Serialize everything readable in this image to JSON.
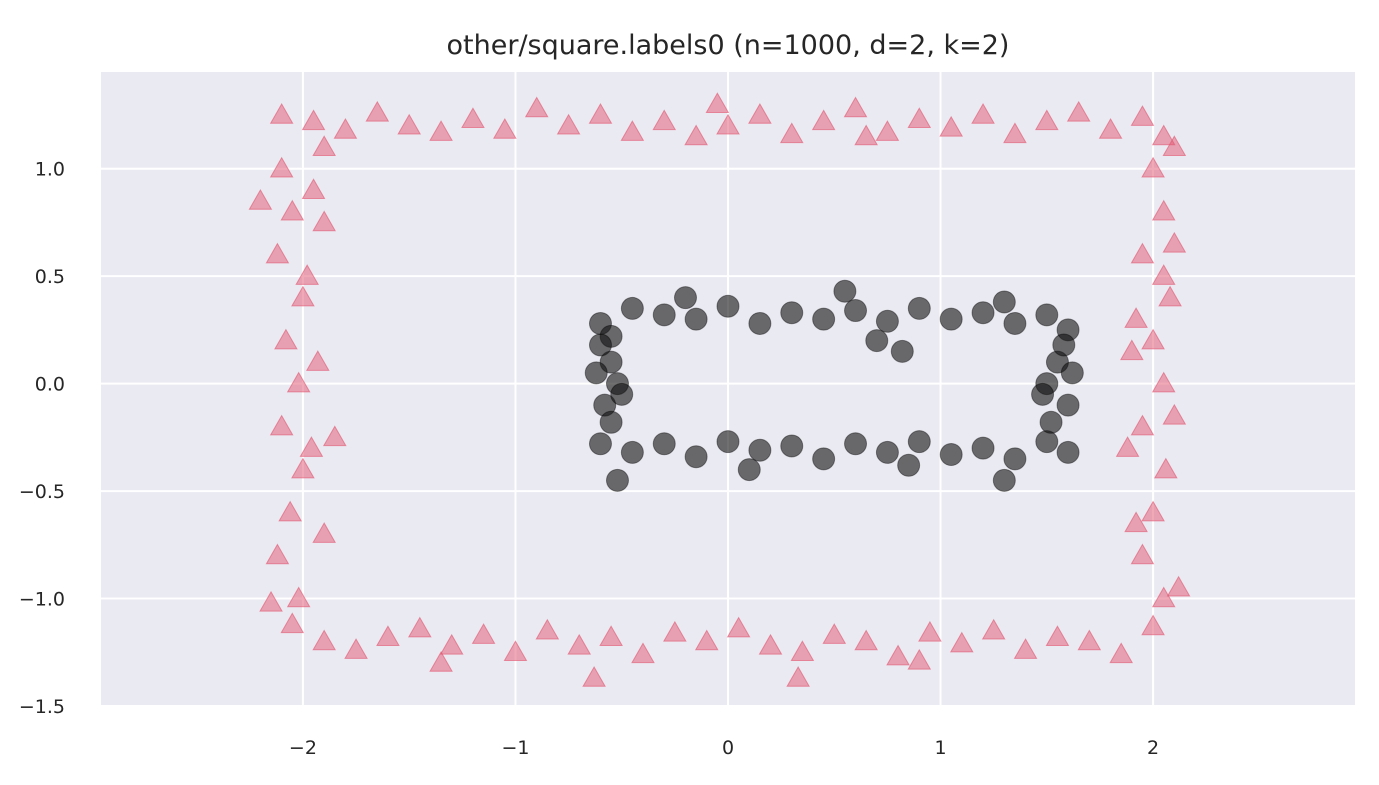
{
  "chart_data": {
    "type": "scatter",
    "title": "other/square.labels0 (n=1000, d=2, k=2)",
    "xlabel": "",
    "ylabel": "",
    "xlim": [
      -2.95,
      2.95
    ],
    "ylim": [
      -1.5,
      1.45
    ],
    "xticks": [
      -2,
      -1,
      0,
      1,
      2
    ],
    "yticks": [
      -1.5,
      -1.0,
      -0.5,
      0.0,
      0.5,
      1.0
    ],
    "xtick_labels": [
      "−2",
      "−1",
      "0",
      "1",
      "2"
    ],
    "ytick_labels": [
      "−1.5",
      "−1.0",
      "−0.5",
      "0.0",
      "0.5",
      "1.0"
    ],
    "grid": true,
    "background": "#eaeaf2",
    "series": [
      {
        "marker": "triangle",
        "color": "#e2556f",
        "points": [
          [
            -2.1,
            1.25
          ],
          [
            -1.95,
            1.22
          ],
          [
            -1.8,
            1.18
          ],
          [
            -1.65,
            1.26
          ],
          [
            -1.5,
            1.2
          ],
          [
            -1.35,
            1.17
          ],
          [
            -1.2,
            1.23
          ],
          [
            -1.05,
            1.18
          ],
          [
            -0.9,
            1.28
          ],
          [
            -0.75,
            1.2
          ],
          [
            -0.6,
            1.25
          ],
          [
            -0.45,
            1.17
          ],
          [
            -0.3,
            1.22
          ],
          [
            -0.15,
            1.15
          ],
          [
            0.0,
            1.2
          ],
          [
            0.15,
            1.25
          ],
          [
            0.3,
            1.16
          ],
          [
            0.45,
            1.22
          ],
          [
            0.6,
            1.28
          ],
          [
            0.75,
            1.17
          ],
          [
            0.9,
            1.23
          ],
          [
            1.05,
            1.19
          ],
          [
            1.2,
            1.25
          ],
          [
            1.35,
            1.16
          ],
          [
            1.5,
            1.22
          ],
          [
            1.65,
            1.26
          ],
          [
            1.8,
            1.18
          ],
          [
            1.95,
            1.24
          ],
          [
            2.05,
            1.15
          ],
          [
            -1.9,
            1.1
          ],
          [
            -0.05,
            1.3
          ],
          [
            0.65,
            1.15
          ],
          [
            -2.05,
            -1.12
          ],
          [
            -1.9,
            -1.2
          ],
          [
            -1.75,
            -1.24
          ],
          [
            -1.6,
            -1.18
          ],
          [
            -1.45,
            -1.14
          ],
          [
            -1.3,
            -1.22
          ],
          [
            -1.15,
            -1.17
          ],
          [
            -1.0,
            -1.25
          ],
          [
            -0.85,
            -1.15
          ],
          [
            -0.7,
            -1.22
          ],
          [
            -0.55,
            -1.18
          ],
          [
            -0.4,
            -1.26
          ],
          [
            -0.25,
            -1.16
          ],
          [
            -0.1,
            -1.2
          ],
          [
            0.05,
            -1.14
          ],
          [
            0.2,
            -1.22
          ],
          [
            0.35,
            -1.25
          ],
          [
            0.5,
            -1.17
          ],
          [
            0.65,
            -1.2
          ],
          [
            0.8,
            -1.27
          ],
          [
            0.95,
            -1.16
          ],
          [
            1.1,
            -1.21
          ],
          [
            1.25,
            -1.15
          ],
          [
            1.4,
            -1.24
          ],
          [
            1.55,
            -1.18
          ],
          [
            1.7,
            -1.2
          ],
          [
            1.85,
            -1.26
          ],
          [
            2.0,
            -1.13
          ],
          [
            -0.63,
            -1.37
          ],
          [
            0.33,
            -1.37
          ],
          [
            -1.35,
            -1.3
          ],
          [
            0.9,
            -1.29
          ],
          [
            -2.1,
            1.0
          ],
          [
            -2.05,
            0.8
          ],
          [
            -2.12,
            0.6
          ],
          [
            -2.0,
            0.4
          ],
          [
            -2.08,
            0.2
          ],
          [
            -2.02,
            0.0
          ],
          [
            -2.1,
            -0.2
          ],
          [
            -2.0,
            -0.4
          ],
          [
            -2.06,
            -0.6
          ],
          [
            -2.12,
            -0.8
          ],
          [
            -2.02,
            -1.0
          ],
          [
            -1.95,
            0.9
          ],
          [
            -1.98,
            0.5
          ],
          [
            -1.93,
            0.1
          ],
          [
            -1.96,
            -0.3
          ],
          [
            -1.9,
            -0.7
          ],
          [
            -2.2,
            0.85
          ],
          [
            -2.15,
            -1.02
          ],
          [
            -1.85,
            -0.25
          ],
          [
            -1.9,
            0.75
          ],
          [
            2.0,
            1.0
          ],
          [
            2.05,
            0.8
          ],
          [
            1.95,
            0.6
          ],
          [
            2.08,
            0.4
          ],
          [
            2.0,
            0.2
          ],
          [
            2.05,
            0.0
          ],
          [
            1.95,
            -0.2
          ],
          [
            2.06,
            -0.4
          ],
          [
            2.0,
            -0.6
          ],
          [
            1.95,
            -0.8
          ],
          [
            2.05,
            -1.0
          ],
          [
            2.1,
            0.65
          ],
          [
            1.92,
            0.3
          ],
          [
            2.1,
            -0.15
          ],
          [
            1.92,
            -0.65
          ],
          [
            2.12,
            -0.95
          ],
          [
            1.9,
            0.15
          ],
          [
            2.1,
            1.1
          ],
          [
            1.88,
            -0.3
          ],
          [
            2.05,
            0.5
          ]
        ]
      },
      {
        "marker": "circle",
        "color": "#111111",
        "points": [
          [
            -0.6,
            0.28
          ],
          [
            -0.45,
            0.35
          ],
          [
            -0.3,
            0.32
          ],
          [
            -0.15,
            0.3
          ],
          [
            0.0,
            0.36
          ],
          [
            0.15,
            0.28
          ],
          [
            0.3,
            0.33
          ],
          [
            0.45,
            0.3
          ],
          [
            0.6,
            0.34
          ],
          [
            0.75,
            0.29
          ],
          [
            0.9,
            0.35
          ],
          [
            1.05,
            0.3
          ],
          [
            1.2,
            0.33
          ],
          [
            1.35,
            0.28
          ],
          [
            1.5,
            0.32
          ],
          [
            1.6,
            0.25
          ],
          [
            -0.55,
            0.22
          ],
          [
            0.55,
            0.43
          ],
          [
            1.3,
            0.38
          ],
          [
            -0.2,
            0.4
          ],
          [
            -0.6,
            -0.28
          ],
          [
            -0.45,
            -0.32
          ],
          [
            -0.3,
            -0.28
          ],
          [
            -0.15,
            -0.34
          ],
          [
            0.0,
            -0.27
          ],
          [
            0.15,
            -0.31
          ],
          [
            0.3,
            -0.29
          ],
          [
            0.45,
            -0.35
          ],
          [
            0.6,
            -0.28
          ],
          [
            0.75,
            -0.32
          ],
          [
            0.9,
            -0.27
          ],
          [
            1.05,
            -0.33
          ],
          [
            1.2,
            -0.3
          ],
          [
            1.35,
            -0.35
          ],
          [
            1.5,
            -0.27
          ],
          [
            1.6,
            -0.32
          ],
          [
            -0.52,
            -0.45
          ],
          [
            0.1,
            -0.4
          ],
          [
            1.3,
            -0.45
          ],
          [
            0.85,
            -0.38
          ],
          [
            -0.55,
            0.1
          ],
          [
            -0.58,
            -0.1
          ],
          [
            -0.52,
            0.0
          ],
          [
            -0.6,
            0.18
          ],
          [
            -0.55,
            -0.18
          ],
          [
            -0.62,
            0.05
          ],
          [
            -0.5,
            -0.05
          ],
          [
            1.55,
            0.1
          ],
          [
            1.6,
            -0.1
          ],
          [
            1.5,
            0.0
          ],
          [
            1.58,
            0.18
          ],
          [
            1.52,
            -0.18
          ],
          [
            1.62,
            0.05
          ],
          [
            1.48,
            -0.05
          ],
          [
            0.7,
            0.2
          ],
          [
            0.82,
            0.15
          ]
        ]
      }
    ]
  }
}
